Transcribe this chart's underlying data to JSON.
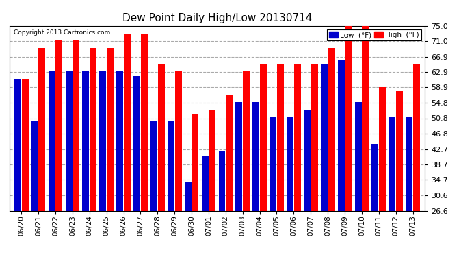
{
  "title": "Dew Point Daily High/Low 20130714",
  "copyright": "Copyright 2013 Cartronics.com",
  "legend_low_label": "Low  (°F)",
  "legend_high_label": "High  (°F)",
  "ylim": [
    26.6,
    75.0
  ],
  "ybase": 26.6,
  "yticks": [
    26.6,
    30.6,
    34.7,
    38.7,
    42.7,
    46.8,
    50.8,
    54.8,
    58.9,
    62.9,
    66.9,
    71.0,
    75.0
  ],
  "background_color": "#ffffff",
  "plot_bg_color": "#ffffff",
  "grid_color": "#aaaaaa",
  "bar_color_high": "#ff0000",
  "bar_color_low": "#0000cc",
  "categories": [
    "06/20",
    "06/21",
    "06/22",
    "06/23",
    "06/24",
    "06/25",
    "06/26",
    "06/27",
    "06/28",
    "06/29",
    "06/30",
    "07/01",
    "07/02",
    "07/03",
    "07/04",
    "07/05",
    "07/06",
    "07/07",
    "07/08",
    "07/09",
    "07/10",
    "07/11",
    "07/12",
    "07/13"
  ],
  "high_values": [
    61.0,
    69.1,
    71.1,
    71.1,
    69.1,
    69.1,
    73.0,
    73.0,
    65.1,
    63.0,
    52.0,
    53.1,
    57.0,
    63.0,
    65.1,
    65.1,
    65.1,
    65.1,
    69.1,
    75.0,
    75.0,
    59.0,
    57.9,
    64.9
  ],
  "low_values": [
    61.0,
    50.0,
    63.0,
    63.0,
    63.0,
    63.0,
    63.0,
    61.9,
    50.0,
    50.0,
    34.0,
    41.0,
    42.1,
    55.0,
    55.0,
    51.1,
    51.1,
    53.1,
    65.0,
    66.0,
    55.0,
    44.1,
    51.1,
    51.1
  ]
}
